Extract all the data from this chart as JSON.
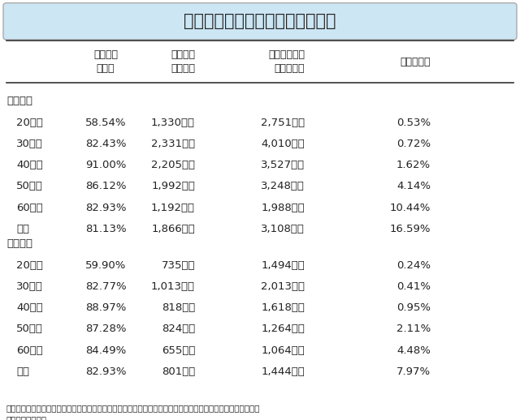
{
  "title": "生命保険に見る人々のリスク対応",
  "col_headers": [
    "",
    "生命保険\n加入率",
    "生命保険\n加入金額",
    "死亡保険金の\n必要希望額",
    "推計死亡率"
  ],
  "male_label": "（男性）",
  "female_label": "（女性）",
  "male_rows": [
    [
      "20歳代",
      "58.54%",
      "1,330万円",
      "2,751万円",
      "0.53%"
    ],
    [
      "30歳代",
      "82.43%",
      "2,331万円",
      "4,010万円",
      "0.72%"
    ],
    [
      "40歳代",
      "91.00%",
      "2,205万円",
      "3,527万円",
      "1.62%"
    ],
    [
      "50歳代",
      "86.12%",
      "1,992万円",
      "3,248万円",
      "4.14%"
    ],
    [
      "60歳代",
      "82.93%",
      "1,192万円",
      "1,988万円",
      "10.44%"
    ],
    [
      "全体",
      "81.13%",
      "1,866万円",
      "3,108万円",
      "16.59%"
    ]
  ],
  "female_rows": [
    [
      "20歳代",
      "59.90%",
      "735万円",
      "1,494万円",
      "0.24%"
    ],
    [
      "30歳代",
      "82.77%",
      "1,013万円",
      "2,013万円",
      "0.41%"
    ],
    [
      "40歳代",
      "88.97%",
      "818万円",
      "1,618万円",
      "0.95%"
    ],
    [
      "50歳代",
      "87.28%",
      "824万円",
      "1,264万円",
      "2.11%"
    ],
    [
      "60歳代",
      "84.49%",
      "655万円",
      "1,064万円",
      "4.48%"
    ],
    [
      "全体",
      "82.93%",
      "801万円",
      "1,444万円",
      "7.97%"
    ]
  ],
  "footnote": "（出所）生命保険文化センター「（令和元年度）生活保障に関する調査」、厚生労働省「第２２回生命表」より\n　　　　筆者作成",
  "title_bg_color": "#cce6f4",
  "header_line_color": "#333333",
  "text_color": "#222222",
  "bg_color": "#ffffff",
  "title_fontsize": 15,
  "header_fontsize": 9,
  "data_fontsize": 9.5,
  "footnote_fontsize": 7.5
}
